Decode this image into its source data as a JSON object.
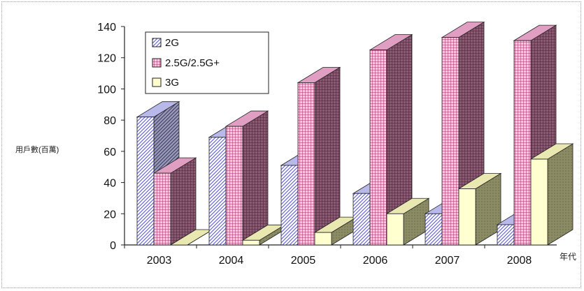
{
  "chart_data": {
    "type": "bar",
    "categories": [
      "2003",
      "2004",
      "2005",
      "2006",
      "2007",
      "2008"
    ],
    "series": [
      {
        "name": "2G",
        "values": [
          82,
          69,
          51,
          33,
          20,
          13
        ]
      },
      {
        "name": "2.5G/2.5G+",
        "values": [
          46,
          76,
          104,
          125,
          133,
          131
        ]
      },
      {
        "name": "3G",
        "values": [
          0,
          3,
          8,
          20,
          36,
          55
        ]
      }
    ],
    "ylabel": "用戶數(百萬)",
    "xlabel": "年代",
    "ylim": [
      0,
      140
    ],
    "yticks": [
      0,
      20,
      40,
      60,
      80,
      100,
      120,
      140
    ],
    "grid": false,
    "legend_position": "top-left",
    "three_d": true
  },
  "colors": {
    "2G": "#b9b9ff",
    "2.5G/2.5G+": "#e8a6c8",
    "3G": "#ffffc8",
    "axis": "#222222"
  }
}
